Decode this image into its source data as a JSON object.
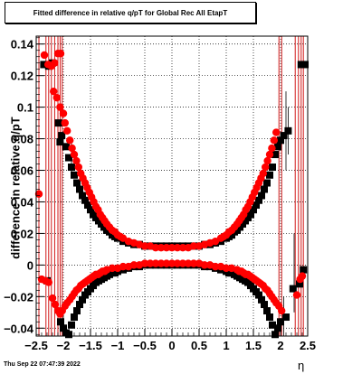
{
  "chart_data": {
    "type": "scatter",
    "title": "Fitted difference in relative q/pT for Global Rec All EtapT",
    "xlabel": "η",
    "ylabel": "difference in relative q/pT",
    "xlim": [
      -2.5,
      2.5
    ],
    "ylim": [
      -0.045,
      0.145
    ],
    "x_ticks": [
      "−2.5",
      "−2",
      "−1.5",
      "−1",
      "−0.5",
      "0",
      "0.5",
      "1",
      "1.5",
      "2",
      "2.5"
    ],
    "y_ticks": [
      "−0.04",
      "−0.02",
      "0",
      "0.02",
      "0.04",
      "0.06",
      "0.08",
      "0.1",
      "0.12",
      "0.14"
    ],
    "y_tick_values": [
      -0.04,
      -0.02,
      0,
      0.02,
      0.04,
      0.06,
      0.08,
      0.1,
      0.12,
      0.14
    ],
    "grid": true,
    "footer": "Thu Sep 22 07:47:39 2022",
    "colors": {
      "series_a": "#000000",
      "series_b": "#ff0000",
      "errorbar_b": "#cc0000"
    },
    "series": [
      {
        "marker": "square",
        "color": "#000000",
        "points": [
          [
            -2.36,
            0.127
          ],
          [
            -2.27,
            0.126
          ],
          [
            -2.2,
            0.128
          ],
          [
            -2.09,
            0.09
          ],
          [
            -2.06,
            0.078
          ],
          [
            -2.03,
            0.082
          ],
          [
            -1.95,
            0.075
          ],
          [
            -1.9,
            0.068
          ],
          [
            -1.85,
            0.062
          ],
          [
            -1.8,
            0.057
          ],
          [
            -1.75,
            0.052
          ],
          [
            -1.7,
            0.048
          ],
          [
            -1.65,
            0.044
          ],
          [
            -1.6,
            0.041
          ],
          [
            -1.55,
            0.038
          ],
          [
            -1.5,
            0.035
          ],
          [
            -1.45,
            0.032
          ],
          [
            -1.4,
            0.03
          ],
          [
            -1.35,
            0.028
          ],
          [
            -1.3,
            0.026
          ],
          [
            -1.25,
            0.024
          ],
          [
            -1.2,
            0.022
          ],
          [
            -1.15,
            0.021
          ],
          [
            -1.1,
            0.019
          ],
          [
            -1.05,
            0.018
          ],
          [
            -1.0,
            0.017
          ],
          [
            -0.9,
            0.015
          ],
          [
            -0.8,
            0.014
          ],
          [
            -0.7,
            0.013
          ],
          [
            -0.6,
            0.013
          ],
          [
            -0.5,
            0.012
          ],
          [
            -0.4,
            0.012
          ],
          [
            -0.3,
            0.012
          ],
          [
            -0.2,
            0.012
          ],
          [
            -0.1,
            0.012
          ],
          [
            0.0,
            0.012
          ],
          [
            0.1,
            0.012
          ],
          [
            0.2,
            0.012
          ],
          [
            0.3,
            0.012
          ],
          [
            0.4,
            0.012
          ],
          [
            0.5,
            0.012
          ],
          [
            0.6,
            0.013
          ],
          [
            0.7,
            0.013
          ],
          [
            0.8,
            0.014
          ],
          [
            0.9,
            0.015
          ],
          [
            1.0,
            0.017
          ],
          [
            1.05,
            0.018
          ],
          [
            1.1,
            0.019
          ],
          [
            1.15,
            0.021
          ],
          [
            1.2,
            0.022
          ],
          [
            1.25,
            0.024
          ],
          [
            1.3,
            0.026
          ],
          [
            1.35,
            0.028
          ],
          [
            1.4,
            0.03
          ],
          [
            1.45,
            0.032
          ],
          [
            1.5,
            0.035
          ],
          [
            1.55,
            0.038
          ],
          [
            1.6,
            0.041
          ],
          [
            1.65,
            0.044
          ],
          [
            1.7,
            0.048
          ],
          [
            1.75,
            0.052
          ],
          [
            1.8,
            0.057
          ],
          [
            1.85,
            0.062
          ],
          [
            1.9,
            0.07
          ],
          [
            1.95,
            0.075
          ],
          [
            2.0,
            0.079
          ],
          [
            2.06,
            0.082
          ],
          [
            2.14,
            0.085
          ],
          [
            2.38,
            0.127
          ],
          [
            2.45,
            0.127
          ],
          [
            -2.3,
            -0.01
          ],
          [
            -2.05,
            -0.036
          ],
          [
            -2.0,
            -0.04
          ],
          [
            -1.95,
            -0.043
          ],
          [
            -1.9,
            -0.044
          ],
          [
            -1.85,
            -0.038
          ],
          [
            -1.8,
            -0.033
          ],
          [
            -1.75,
            -0.029
          ],
          [
            -1.7,
            -0.025
          ],
          [
            -1.65,
            -0.022
          ],
          [
            -1.6,
            -0.019
          ],
          [
            -1.55,
            -0.017
          ],
          [
            -1.5,
            -0.015
          ],
          [
            -1.45,
            -0.013
          ],
          [
            -1.4,
            -0.011
          ],
          [
            -1.35,
            -0.01
          ],
          [
            -1.3,
            -0.009
          ],
          [
            -1.25,
            -0.008
          ],
          [
            -1.2,
            -0.007
          ],
          [
            -1.15,
            -0.006
          ],
          [
            -1.1,
            -0.005
          ],
          [
            -1.05,
            -0.005
          ],
          [
            -1.0,
            -0.004
          ],
          [
            -0.9,
            -0.003
          ],
          [
            -0.8,
            -0.002
          ],
          [
            -0.7,
            -0.001
          ],
          [
            -0.6,
            -0.001
          ],
          [
            -0.5,
            0.0
          ],
          [
            -0.4,
            0.0
          ],
          [
            -0.3,
            0.0
          ],
          [
            -0.2,
            0.0
          ],
          [
            -0.1,
            0.0
          ],
          [
            0.0,
            0.0
          ],
          [
            0.1,
            0.0
          ],
          [
            0.2,
            0.0
          ],
          [
            0.3,
            0.0
          ],
          [
            0.4,
            0.0
          ],
          [
            0.5,
            0.0
          ],
          [
            0.6,
            -0.001
          ],
          [
            0.7,
            -0.001
          ],
          [
            0.8,
            -0.002
          ],
          [
            0.9,
            -0.003
          ],
          [
            1.0,
            -0.004
          ],
          [
            1.05,
            -0.005
          ],
          [
            1.1,
            -0.005
          ],
          [
            1.15,
            -0.006
          ],
          [
            1.2,
            -0.007
          ],
          [
            1.25,
            -0.008
          ],
          [
            1.3,
            -0.009
          ],
          [
            1.35,
            -0.01
          ],
          [
            1.4,
            -0.011
          ],
          [
            1.45,
            -0.013
          ],
          [
            1.5,
            -0.015
          ],
          [
            1.55,
            -0.017
          ],
          [
            1.6,
            -0.019
          ],
          [
            1.65,
            -0.022
          ],
          [
            1.7,
            -0.025
          ],
          [
            1.75,
            -0.029
          ],
          [
            1.8,
            -0.033
          ],
          [
            1.85,
            -0.038
          ],
          [
            1.9,
            -0.044
          ],
          [
            1.95,
            -0.04
          ],
          [
            2.0,
            -0.036
          ],
          [
            2.1,
            -0.033
          ],
          [
            2.23,
            -0.015
          ],
          [
            2.35,
            -0.012
          ],
          [
            2.42,
            -0.003
          ]
        ]
      },
      {
        "marker": "circle",
        "color": "#ff0000",
        "points": [
          [
            -2.45,
            0.045
          ],
          [
            -2.35,
            0.133
          ],
          [
            -2.28,
            0.127
          ],
          [
            -2.22,
            0.126
          ],
          [
            -2.16,
            0.128
          ],
          [
            -2.1,
            0.134
          ],
          [
            -2.05,
            0.134
          ],
          [
            -2.18,
            0.11
          ],
          [
            -2.12,
            0.106
          ],
          [
            -2.06,
            0.1
          ],
          [
            -2.0,
            0.096
          ],
          [
            -1.97,
            0.09
          ],
          [
            -1.93,
            0.085
          ],
          [
            -1.88,
            0.079
          ],
          [
            -1.84,
            0.074
          ],
          [
            -1.8,
            0.07
          ],
          [
            -1.76,
            0.066
          ],
          [
            -1.72,
            0.062
          ],
          [
            -1.68,
            0.058
          ],
          [
            -1.64,
            0.055
          ],
          [
            -1.6,
            0.052
          ],
          [
            -1.56,
            0.049
          ],
          [
            -1.52,
            0.046
          ],
          [
            -1.48,
            0.043
          ],
          [
            -1.44,
            0.04
          ],
          [
            -1.4,
            0.037
          ],
          [
            -1.36,
            0.035
          ],
          [
            -1.32,
            0.032
          ],
          [
            -1.28,
            0.03
          ],
          [
            -1.24,
            0.028
          ],
          [
            -1.2,
            0.026
          ],
          [
            -1.15,
            0.024
          ],
          [
            -1.1,
            0.022
          ],
          [
            -1.05,
            0.021
          ],
          [
            -1.0,
            0.019
          ],
          [
            -0.95,
            0.018
          ],
          [
            -0.9,
            0.017
          ],
          [
            -0.8,
            0.015
          ],
          [
            -0.7,
            0.014
          ],
          [
            -0.6,
            0.013
          ],
          [
            -0.5,
            0.012
          ],
          [
            -0.4,
            0.012
          ],
          [
            -0.3,
            0.011
          ],
          [
            -0.2,
            0.011
          ],
          [
            -0.1,
            0.011
          ],
          [
            0.0,
            0.011
          ],
          [
            0.1,
            0.011
          ],
          [
            0.2,
            0.011
          ],
          [
            0.3,
            0.011
          ],
          [
            0.4,
            0.012
          ],
          [
            0.5,
            0.012
          ],
          [
            0.6,
            0.013
          ],
          [
            0.7,
            0.014
          ],
          [
            0.8,
            0.015
          ],
          [
            0.9,
            0.017
          ],
          [
            0.95,
            0.018
          ],
          [
            1.0,
            0.019
          ],
          [
            1.05,
            0.021
          ],
          [
            1.1,
            0.022
          ],
          [
            1.15,
            0.024
          ],
          [
            1.2,
            0.026
          ],
          [
            1.24,
            0.028
          ],
          [
            1.28,
            0.03
          ],
          [
            1.32,
            0.032
          ],
          [
            1.36,
            0.035
          ],
          [
            1.4,
            0.037
          ],
          [
            1.44,
            0.04
          ],
          [
            1.48,
            0.043
          ],
          [
            1.52,
            0.046
          ],
          [
            1.56,
            0.049
          ],
          [
            1.6,
            0.052
          ],
          [
            1.64,
            0.055
          ],
          [
            1.68,
            0.058
          ],
          [
            1.72,
            0.062
          ],
          [
            1.76,
            0.066
          ],
          [
            1.8,
            0.07
          ],
          [
            1.84,
            0.074
          ],
          [
            1.88,
            0.079
          ],
          [
            1.92,
            0.084
          ],
          [
            -2.4,
            -0.009
          ],
          [
            -2.33,
            -0.01
          ],
          [
            -2.27,
            -0.011
          ],
          [
            -2.2,
            -0.021
          ],
          [
            -2.15,
            -0.025
          ],
          [
            -2.1,
            -0.029
          ],
          [
            -2.06,
            -0.031
          ],
          [
            -2.02,
            -0.029
          ],
          [
            -1.97,
            -0.026
          ],
          [
            -1.93,
            -0.024
          ],
          [
            -1.88,
            -0.022
          ],
          [
            -1.84,
            -0.02
          ],
          [
            -1.8,
            -0.018
          ],
          [
            -1.76,
            -0.016
          ],
          [
            -1.72,
            -0.015
          ],
          [
            -1.68,
            -0.013
          ],
          [
            -1.64,
            -0.012
          ],
          [
            -1.6,
            -0.011
          ],
          [
            -1.56,
            -0.01
          ],
          [
            -1.52,
            -0.009
          ],
          [
            -1.48,
            -0.008
          ],
          [
            -1.44,
            -0.007
          ],
          [
            -1.4,
            -0.006
          ],
          [
            -1.36,
            -0.006
          ],
          [
            -1.32,
            -0.005
          ],
          [
            -1.28,
            -0.004
          ],
          [
            -1.24,
            -0.004
          ],
          [
            -1.2,
            -0.003
          ],
          [
            -1.1,
            -0.002
          ],
          [
            -1.0,
            -0.002
          ],
          [
            -0.9,
            -0.001
          ],
          [
            -0.8,
            -0.001
          ],
          [
            -0.7,
            0.0
          ],
          [
            -0.6,
            0.0
          ],
          [
            -0.5,
            0.001
          ],
          [
            -0.4,
            0.001
          ],
          [
            -0.3,
            0.001
          ],
          [
            -0.2,
            0.001
          ],
          [
            -0.1,
            0.001
          ],
          [
            0.0,
            0.001
          ],
          [
            0.1,
            0.001
          ],
          [
            0.2,
            0.001
          ],
          [
            0.3,
            0.001
          ],
          [
            0.4,
            0.001
          ],
          [
            0.5,
            0.001
          ],
          [
            0.6,
            0.0
          ],
          [
            0.7,
            0.0
          ],
          [
            0.8,
            -0.001
          ],
          [
            0.9,
            -0.001
          ],
          [
            1.0,
            -0.002
          ],
          [
            1.1,
            -0.002
          ],
          [
            1.2,
            -0.003
          ],
          [
            1.24,
            -0.004
          ],
          [
            1.28,
            -0.004
          ],
          [
            1.32,
            -0.005
          ],
          [
            1.36,
            -0.006
          ],
          [
            1.4,
            -0.006
          ],
          [
            1.44,
            -0.007
          ],
          [
            1.48,
            -0.008
          ],
          [
            1.52,
            -0.009
          ],
          [
            1.56,
            -0.01
          ],
          [
            1.6,
            -0.011
          ],
          [
            1.64,
            -0.012
          ],
          [
            1.68,
            -0.013
          ],
          [
            1.72,
            -0.015
          ],
          [
            1.76,
            -0.016
          ],
          [
            1.8,
            -0.018
          ],
          [
            1.84,
            -0.02
          ],
          [
            1.88,
            -0.022
          ],
          [
            1.92,
            -0.024
          ],
          [
            1.97,
            -0.026
          ],
          [
            2.02,
            -0.029
          ],
          [
            2.3,
            -0.019
          ],
          [
            2.36,
            -0.009
          ],
          [
            2.4,
            -0.007
          ]
        ]
      }
    ]
  }
}
